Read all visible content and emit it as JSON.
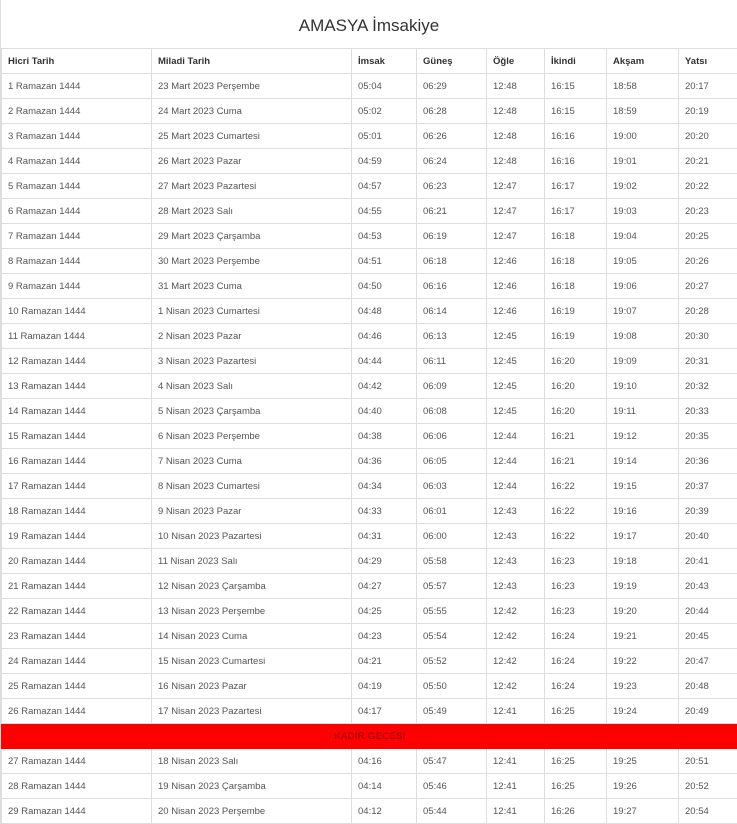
{
  "title": "AMASYA İmsakiye",
  "columns": [
    "Hicri Tarih",
    "Miladi Tarih",
    "İmsak",
    "Güneş",
    "Öğle",
    "İkindi",
    "Akşam",
    "Yatsı"
  ],
  "special_color": "#ff0000",
  "rows": [
    [
      "1 Ramazan 1444",
      "23 Mart 2023 Perşembe",
      "05:04",
      "06:29",
      "12:48",
      "16:15",
      "18:58",
      "20:17"
    ],
    [
      "2 Ramazan 1444",
      "24 Mart 2023 Cuma",
      "05:02",
      "06:28",
      "12:48",
      "16:15",
      "18:59",
      "20:19"
    ],
    [
      "3 Ramazan 1444",
      "25 Mart 2023 Cumartesi",
      "05:01",
      "06:26",
      "12:48",
      "16:16",
      "19:00",
      "20:20"
    ],
    [
      "4 Ramazan 1444",
      "26 Mart 2023 Pazar",
      "04:59",
      "06:24",
      "12:48",
      "16:16",
      "19:01",
      "20:21"
    ],
    [
      "5 Ramazan 1444",
      "27 Mart 2023 Pazartesi",
      "04:57",
      "06:23",
      "12:47",
      "16:17",
      "19:02",
      "20:22"
    ],
    [
      "6 Ramazan 1444",
      "28 Mart 2023 Salı",
      "04:55",
      "06:21",
      "12:47",
      "16:17",
      "19:03",
      "20:23"
    ],
    [
      "7 Ramazan 1444",
      "29 Mart 2023 Çarşamba",
      "04:53",
      "06:19",
      "12:47",
      "16:18",
      "19:04",
      "20:25"
    ],
    [
      "8 Ramazan 1444",
      "30 Mart 2023 Perşembe",
      "04:51",
      "06:18",
      "12:46",
      "16:18",
      "19:05",
      "20:26"
    ],
    [
      "9 Ramazan 1444",
      "31 Mart 2023 Cuma",
      "04:50",
      "06:16",
      "12:46",
      "16:18",
      "19:06",
      "20:27"
    ],
    [
      "10 Ramazan 1444",
      "1 Nisan 2023 Cumartesi",
      "04:48",
      "06:14",
      "12:46",
      "16:19",
      "19:07",
      "20:28"
    ],
    [
      "11 Ramazan 1444",
      "2 Nisan 2023 Pazar",
      "04:46",
      "06:13",
      "12:45",
      "16:19",
      "19:08",
      "20:30"
    ],
    [
      "12 Ramazan 1444",
      "3 Nisan 2023 Pazartesi",
      "04:44",
      "06:11",
      "12:45",
      "16:20",
      "19:09",
      "20:31"
    ],
    [
      "13 Ramazan 1444",
      "4 Nisan 2023 Salı",
      "04:42",
      "06:09",
      "12:45",
      "16:20",
      "19:10",
      "20:32"
    ],
    [
      "14 Ramazan 1444",
      "5 Nisan 2023 Çarşamba",
      "04:40",
      "06:08",
      "12:45",
      "16:20",
      "19:11",
      "20:33"
    ],
    [
      "15 Ramazan 1444",
      "6 Nisan 2023 Perşembe",
      "04:38",
      "06:06",
      "12:44",
      "16:21",
      "19:12",
      "20:35"
    ],
    [
      "16 Ramazan 1444",
      "7 Nisan 2023 Cuma",
      "04:36",
      "06:05",
      "12:44",
      "16:21",
      "19:14",
      "20:36"
    ],
    [
      "17 Ramazan 1444",
      "8 Nisan 2023 Cumartesi",
      "04:34",
      "06:03",
      "12:44",
      "16:22",
      "19:15",
      "20:37"
    ],
    [
      "18 Ramazan 1444",
      "9 Nisan 2023 Pazar",
      "04:33",
      "06:01",
      "12:43",
      "16:22",
      "19:16",
      "20:39"
    ],
    [
      "19 Ramazan 1444",
      "10 Nisan 2023 Pazartesi",
      "04:31",
      "06:00",
      "12:43",
      "16:22",
      "19:17",
      "20:40"
    ],
    [
      "20 Ramazan 1444",
      "11 Nisan 2023 Salı",
      "04:29",
      "05:58",
      "12:43",
      "16:23",
      "19:18",
      "20:41"
    ],
    [
      "21 Ramazan 1444",
      "12 Nisan 2023 Çarşamba",
      "04:27",
      "05:57",
      "12:43",
      "16:23",
      "19:19",
      "20:43"
    ],
    [
      "22 Ramazan 1444",
      "13 Nisan 2023 Perşembe",
      "04:25",
      "05:55",
      "12:42",
      "16:23",
      "19:20",
      "20:44"
    ],
    [
      "23 Ramazan 1444",
      "14 Nisan 2023 Cuma",
      "04:23",
      "05:54",
      "12:42",
      "16:24",
      "19:21",
      "20:45"
    ],
    [
      "24 Ramazan 1444",
      "15 Nisan 2023 Cumartesi",
      "04:21",
      "05:52",
      "12:42",
      "16:24",
      "19:22",
      "20:47"
    ],
    [
      "25 Ramazan 1444",
      "16 Nisan 2023 Pazar",
      "04:19",
      "05:50",
      "12:42",
      "16:24",
      "19:23",
      "20:48"
    ],
    [
      "26 Ramazan 1444",
      "17 Nisan 2023 Pazartesi",
      "04:17",
      "05:49",
      "12:41",
      "16:25",
      "19:24",
      "20:49"
    ],
    {
      "special": "KADİR GECESİ"
    },
    [
      "27 Ramazan 1444",
      "18 Nisan 2023 Salı",
      "04:16",
      "05:47",
      "12:41",
      "16:25",
      "19:25",
      "20:51"
    ],
    [
      "28 Ramazan 1444",
      "19 Nisan 2023 Çarşamba",
      "04:14",
      "05:46",
      "12:41",
      "16:25",
      "19:26",
      "20:52"
    ],
    [
      "29 Ramazan 1444",
      "20 Nisan 2023 Perşembe",
      "04:12",
      "05:44",
      "12:41",
      "16:26",
      "19:27",
      "20:54"
    ]
  ]
}
